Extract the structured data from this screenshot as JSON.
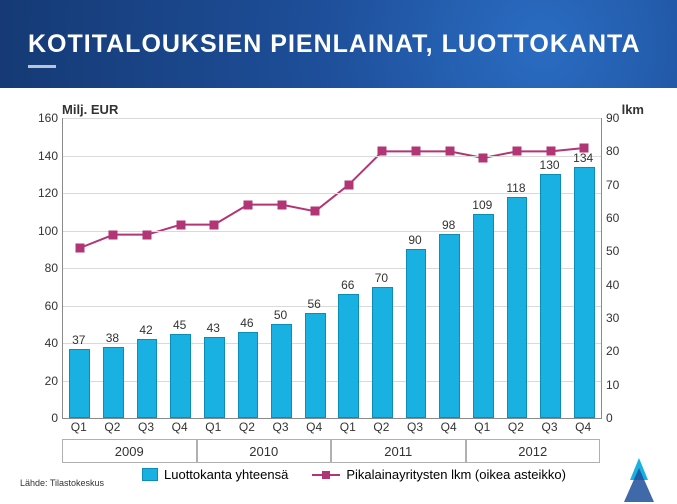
{
  "header": {
    "title": "KOTITALOUKSIEN PIENLAINAT, LUOTTOKANTA"
  },
  "chart": {
    "type": "bar+line",
    "background_color": "#ffffff",
    "grid_color": "#d9d9d9",
    "axis_color": "#8a8a8a",
    "left_axis": {
      "title": "Milj. EUR",
      "min": 0,
      "max": 160,
      "tick_step": 20,
      "title_fontsize": 13
    },
    "right_axis": {
      "title": "lkm",
      "min": 0,
      "max": 90,
      "tick_step": 10,
      "title_fontsize": 13
    },
    "categories": [
      "Q1",
      "Q2",
      "Q3",
      "Q4",
      "Q1",
      "Q2",
      "Q3",
      "Q4",
      "Q1",
      "Q2",
      "Q3",
      "Q4",
      "Q1",
      "Q2",
      "Q3",
      "Q4"
    ],
    "years": [
      "2009",
      "2010",
      "2011",
      "2012"
    ],
    "bars": {
      "label": "Luottokanta yhteensä",
      "color": "#18b1e2",
      "border_color": "#0d8db6",
      "values": [
        37,
        38,
        42,
        45,
        43,
        46,
        50,
        56,
        66,
        70,
        90,
        98,
        109,
        118,
        130,
        134
      ],
      "bar_width_ratio": 0.62,
      "label_fontsize": 12,
      "axis": "left"
    },
    "line": {
      "label": "Pikalainayritysten lkm (oikea asteikko)",
      "color": "#b23575",
      "marker_style": "square",
      "marker_size": 9,
      "line_width": 2,
      "values": [
        51,
        55,
        55,
        58,
        58,
        64,
        64,
        62,
        70,
        80,
        80,
        80,
        78,
        80,
        80,
        81
      ],
      "axis": "right"
    },
    "legend": {
      "position": "bottom",
      "fontsize": 13
    },
    "source_note": "Lähde: Tilastokeskus",
    "source_fontsize": 9,
    "label_fontsize": 12
  }
}
